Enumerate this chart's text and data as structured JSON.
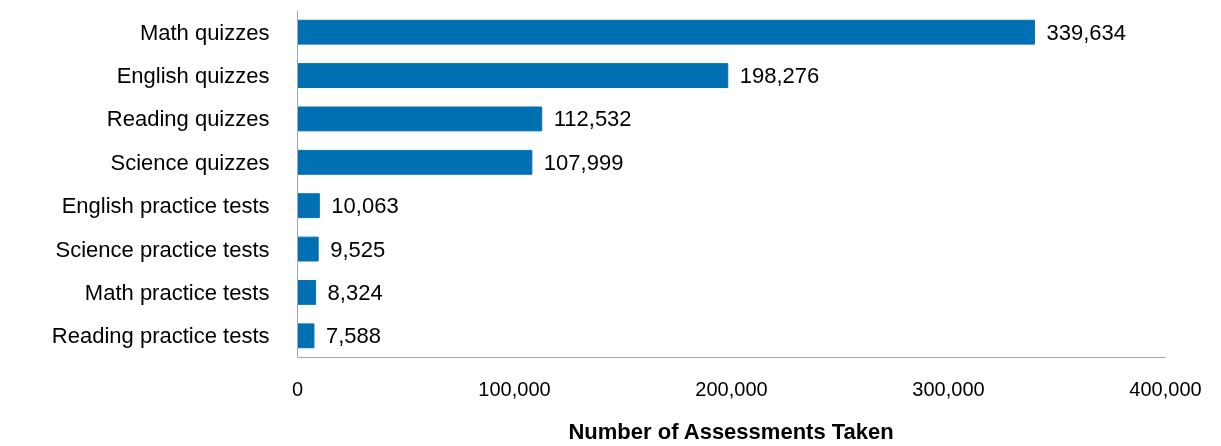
{
  "chart_data": {
    "type": "bar",
    "orientation": "horizontal",
    "xlabel": "Number of Assessments Taken",
    "categories": [
      "Math quizzes",
      "English quizzes",
      "Reading quizzes",
      "Science quizzes",
      "English practice tests",
      "Science practice tests",
      "Math practice tests",
      "Reading practice tests"
    ],
    "values": [
      339634,
      198276,
      112532,
      107999,
      10063,
      9525,
      8324,
      7588
    ],
    "color": "#0070b2",
    "xlim": [
      0,
      400000
    ],
    "xticks": [
      {
        "value": 0,
        "label": "0"
      },
      {
        "value": 100000,
        "label": "100,000"
      },
      {
        "value": 200000,
        "label": "200,000"
      },
      {
        "value": 300000,
        "label": "300,000"
      },
      {
        "value": 400000,
        "label": "400,000"
      }
    ],
    "value_labels": [
      "339,634",
      "198,276",
      "112,532",
      "107,999",
      "10,063",
      "9,525",
      "8,324",
      "7,588"
    ],
    "grid": false
  }
}
